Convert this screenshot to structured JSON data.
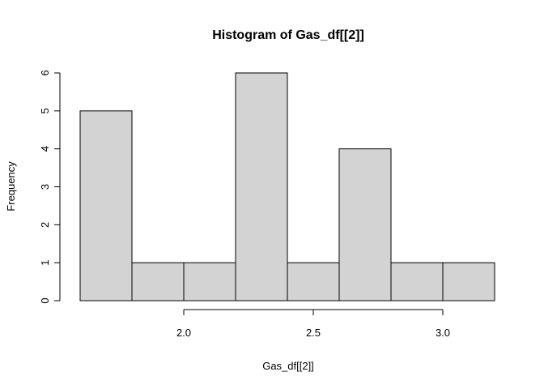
{
  "chart_data": {
    "type": "bar",
    "title": "Histogram of Gas_df[[2]]",
    "xlabel": "Gas_df[[2]]",
    "ylabel": "Frequency",
    "bins": [
      {
        "start": 1.6,
        "end": 1.8,
        "count": 5
      },
      {
        "start": 1.8,
        "end": 2.0,
        "count": 1
      },
      {
        "start": 2.0,
        "end": 2.2,
        "count": 1
      },
      {
        "start": 2.2,
        "end": 2.4,
        "count": 6
      },
      {
        "start": 2.4,
        "end": 2.6,
        "count": 1
      },
      {
        "start": 2.6,
        "end": 2.8,
        "count": 4
      },
      {
        "start": 2.8,
        "end": 3.0,
        "count": 1
      },
      {
        "start": 3.0,
        "end": 3.2,
        "count": 1
      }
    ],
    "xlim": [
      1.6,
      3.2
    ],
    "ylim": [
      0,
      6
    ],
    "x_axis_range": [
      2.0,
      3.0
    ],
    "x_ticks": [
      2.0,
      2.5,
      3.0
    ],
    "x_tick_labels": [
      "2.0",
      "2.5",
      "3.0"
    ],
    "y_ticks": [
      0,
      1,
      2,
      3,
      4,
      5,
      6
    ],
    "y_tick_labels": [
      "0",
      "1",
      "2",
      "3",
      "4",
      "5",
      "6"
    ],
    "grid": false,
    "legend": "none",
    "bar_fill": "#d3d3d3",
    "bar_stroke": "#000000"
  }
}
